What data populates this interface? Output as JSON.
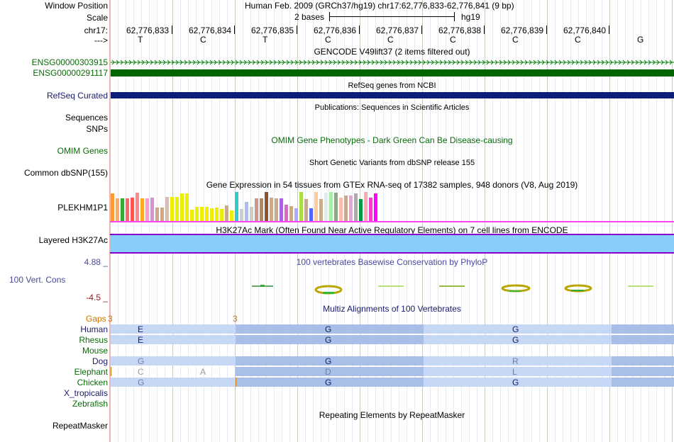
{
  "header": {
    "window_position_label": "Window Position",
    "window_position_value": "Human Feb. 2009 (GRCh37/hg19)   chr17:62,776,833-62,776,841 (9 bp)",
    "scale_label": "Scale",
    "scale_text": "2 bases",
    "scale_assembly": "hg19",
    "chrom_label": "chr17:",
    "strand_label": "--->",
    "positions": [
      "62,776,833",
      "62,776,834",
      "62,776,835",
      "62,776,836",
      "62,776,837",
      "62,776,838",
      "62,776,839",
      "62,776,840"
    ],
    "bases": [
      "T",
      "C",
      "T",
      "C",
      "C",
      "C",
      "C",
      "C",
      "G"
    ]
  },
  "gencode": {
    "title": "GENCODE V49lift37 (2 items filtered out)",
    "items": [
      "ENSG00000303915",
      "ENSG00000291117"
    ]
  },
  "refseq": {
    "title": "RefSeq genes from NCBI",
    "label": "RefSeq Curated"
  },
  "publications": {
    "title": "Publications: Sequences in Scientific Articles",
    "label1": "Sequences",
    "label2": "SNPs"
  },
  "omim": {
    "title": "OMIM Gene Phenotypes - Dark Green Can Be Disease-causing",
    "label": "OMIM Genes"
  },
  "dbsnp": {
    "title": "Short Genetic Variants from dbSNP release 155",
    "label": "Common dbSNP(155)"
  },
  "gtex": {
    "title": "Gene Expression in 54 tissues from GTEx RNA-seq of 17382 samples, 948 donors (V8, Aug 2019)",
    "label": "PLEKHM1P1",
    "bar_values": [
      0.95,
      0.78,
      0.78,
      0.78,
      0.8,
      0.98,
      0.78,
      0.78,
      0.82,
      0.48,
      0.48,
      0.83,
      0.83,
      0.84,
      0.95,
      0.96,
      0.4,
      0.49,
      0.49,
      0.49,
      0.45,
      0.48,
      0.43,
      0.54,
      0.37,
      1.0,
      0.44,
      0.67,
      0.49,
      0.78,
      0.78,
      0.99,
      0.8,
      0.78,
      0.79,
      0.58,
      0.52,
      0.45,
      0.99,
      0.75,
      0.46,
      0.99,
      0.75,
      0.98,
      0.99,
      0.98,
      0.82,
      0.88,
      0.87,
      0.96,
      0.77,
      1.0,
      0.8,
      0.95
    ],
    "bar_colors": [
      "#ff9933",
      "#ffaa66",
      "#33aa33",
      "#ff6666",
      "#ff5555",
      "#ff8888",
      "#ffaa22",
      "#ff99cc",
      "#cc99cc",
      "#ccaa88",
      "#ccaa88",
      "#ddbbaa",
      "#eeee00",
      "#eeee00",
      "#eeee00",
      "#eeee00",
      "#eeee00",
      "#eeee00",
      "#eeee00",
      "#eeee00",
      "#eeee00",
      "#eeee00",
      "#eeee00",
      "#ccaa88",
      "#eeee00",
      "#33cccc",
      "#cccccc",
      "#aabbee",
      "#cccccc",
      "#cc9988",
      "#aa8866",
      "#885533",
      "#ccaa88",
      "#ccaa88",
      "#aa66dd",
      "#dd66cc",
      "#ccaa88",
      "#aaaaff",
      "#aadd44",
      "#ccaa88",
      "#5566ff",
      "#ffcc99",
      "#ccaa88",
      "#ddeeee",
      "#aaeeaa",
      "#88aa88",
      "#ffbbaa",
      "#ccaa88",
      "#ddaacc",
      "#aaaaaa",
      "#009944",
      "#ffaaaa",
      "#ee44cc",
      "#ff00ff"
    ]
  },
  "h3k27ac": {
    "title": "H3K27Ac Mark (Often Found Near Active Regulatory Elements) on 7 cell lines from ENCODE",
    "label": "Layered H3K27Ac"
  },
  "phylop": {
    "title": "100 vertebrates Basewise Conservation by PhyloP",
    "label": "100 Vert. Cons",
    "max": "4.88 _",
    "min": "-4.5 _"
  },
  "multiz": {
    "title": "Multiz Alignments of 100 Vertebrates",
    "gaps_label": "Gaps",
    "gaps_values": [
      "3",
      "3"
    ],
    "species": [
      {
        "name": "Human",
        "bases": [
          "E",
          "G",
          "G"
        ]
      },
      {
        "name": "Rhesus",
        "bases": [
          "E",
          "G",
          "G"
        ]
      },
      {
        "name": "Mouse",
        "bases": []
      },
      {
        "name": "Dog",
        "bases": [
          "G",
          "G",
          "R"
        ]
      },
      {
        "name": "Elephant",
        "bases": [
          "C",
          "A",
          "D",
          "L"
        ]
      },
      {
        "name": "Chicken",
        "bases": [
          "G",
          "G",
          "G"
        ]
      },
      {
        "name": "X_tropicalis",
        "bases": []
      },
      {
        "name": "Zebrafish",
        "bases": []
      }
    ]
  },
  "repeatmasker": {
    "title": "Repeating Elements by RepeatMasker",
    "label": "RepeatMasker"
  },
  "colors": {
    "gencode_green": "#006400",
    "gencode_line": "#0b7f0b",
    "refseq_navy": "#0b1f78",
    "h3k27ac_fill": "#87cefa",
    "h3k27ac_border": "#8800cc",
    "magenta_line": "#ff44ff",
    "phylop_blue": "#4a4a9e",
    "phylop_red": "#8b1a1a",
    "species_green": "#0a6b0a",
    "species_navy": "#1a1a6b",
    "gaps_orange": "#cc7700",
    "mz_light": "#c6d8f5",
    "mz_dark": "#a8c0e8"
  }
}
